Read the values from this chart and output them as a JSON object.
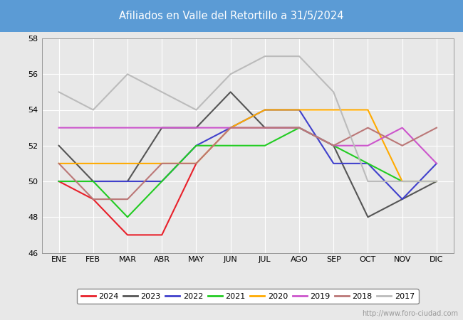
{
  "title": "Afiliados en Valle del Retortillo a 31/5/2024",
  "title_bg_color": "#5b9bd5",
  "title_text_color": "white",
  "xlabels": [
    "ENE",
    "FEB",
    "MAR",
    "ABR",
    "MAY",
    "JUN",
    "JUL",
    "AGO",
    "SEP",
    "OCT",
    "NOV",
    "DIC"
  ],
  "ylim": [
    46,
    58
  ],
  "yticks": [
    46,
    48,
    50,
    52,
    54,
    56,
    58
  ],
  "background_color": "#e8e8e8",
  "plot_bg_color": "#e8e8e8",
  "watermark": "http://www.foro-ciudad.com",
  "series": [
    {
      "year": "2024",
      "color": "#e8202a",
      "data": [
        50,
        49,
        47,
        47,
        51,
        null,
        null,
        null,
        null,
        null,
        null,
        null
      ]
    },
    {
      "year": "2023",
      "color": "#555555",
      "data": [
        52,
        50,
        50,
        53,
        53,
        55,
        53,
        53,
        52,
        48,
        49,
        50
      ]
    },
    {
      "year": "2022",
      "color": "#4040cc",
      "data": [
        50,
        50,
        50,
        50,
        52,
        53,
        54,
        54,
        51,
        51,
        49,
        51
      ]
    },
    {
      "year": "2021",
      "color": "#22cc22",
      "data": [
        50,
        50,
        48,
        50,
        52,
        52,
        52,
        53,
        52,
        51,
        50,
        50
      ]
    },
    {
      "year": "2020",
      "color": "#ffaa00",
      "data": [
        51,
        51,
        51,
        51,
        51,
        53,
        54,
        54,
        54,
        54,
        50,
        50
      ]
    },
    {
      "year": "2019",
      "color": "#cc55cc",
      "data": [
        53,
        53,
        53,
        53,
        53,
        53,
        53,
        53,
        52,
        52,
        53,
        51
      ]
    },
    {
      "year": "2018",
      "color": "#bb7777",
      "data": [
        51,
        49,
        49,
        51,
        51,
        53,
        53,
        53,
        52,
        53,
        52,
        53
      ]
    },
    {
      "year": "2017",
      "color": "#bbbbbb",
      "data": [
        55,
        54,
        56,
        55,
        54,
        56,
        57,
        57,
        55,
        50,
        50,
        50
      ]
    }
  ],
  "legend_bg": "white",
  "footer_color": "#999999",
  "grid_color": "white"
}
